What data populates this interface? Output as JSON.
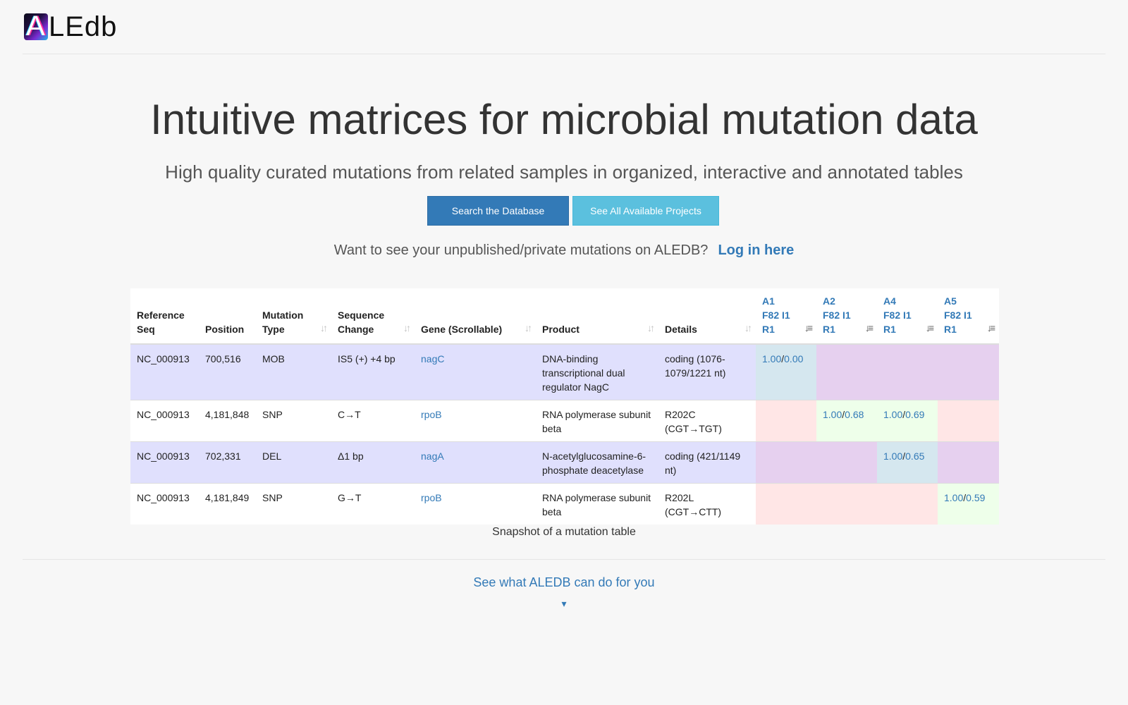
{
  "brand": {
    "logo_letter": "A",
    "logo_text": "LEdb"
  },
  "hero": {
    "title": "Intuitive matrices for microbial mutation data",
    "subtitle": "High quality curated mutations from related samples in organized, interactive and annotated tables"
  },
  "buttons": {
    "search": "Search the Database",
    "projects": "See All Available Projects"
  },
  "login": {
    "prompt": "Want to see your unpublished/private mutations on ALEDB?",
    "link": "Log in here"
  },
  "table": {
    "headers": {
      "ref_seq": [
        "Reference",
        "Seq"
      ],
      "position": "Position",
      "mutation_type": [
        "Mutation",
        "Type"
      ],
      "sequence_change": [
        "Sequence",
        "Change"
      ],
      "gene": "Gene (Scrollable)",
      "product": "Product",
      "details": "Details"
    },
    "samples": [
      {
        "l1": "A1",
        "l2": "F82 I1",
        "l3": "R1"
      },
      {
        "l1": "A2",
        "l2": "F82 I1",
        "l3": "R1"
      },
      {
        "l1": "A4",
        "l2": "F82 I1",
        "l3": "R1"
      },
      {
        "l1": "A5",
        "l2": "F82 I1",
        "l3": "R1"
      }
    ],
    "rows": [
      {
        "ref_seq": "NC_000913",
        "position": "700,516",
        "mutation_type": "MOB",
        "sequence_change": "IS5 (+) +4 bp",
        "gene": "nagC",
        "product": "DNA-binding transcriptional dual regulator NagC",
        "details": "coding (1076-1079/1221 nt)",
        "freqs": [
          [
            "1.00",
            "0.00"
          ],
          null,
          null,
          null
        ]
      },
      {
        "ref_seq": "NC_000913",
        "position": "4,181,848",
        "mutation_type": "SNP",
        "sequence_change": "C→T",
        "gene": "rpoB",
        "product": "RNA polymerase subunit beta",
        "details": "R202C (CGT→TGT)",
        "freqs": [
          null,
          [
            "1.00",
            "0.68"
          ],
          [
            "1.00",
            "0.69"
          ],
          null
        ]
      },
      {
        "ref_seq": "NC_000913",
        "position": "702,331",
        "mutation_type": "DEL",
        "sequence_change": "Δ1 bp",
        "gene": "nagA",
        "product": "N-acetylglucosamine-6-phosphate deacetylase",
        "details": "coding (421/1149 nt)",
        "freqs": [
          null,
          null,
          [
            "1.00",
            "0.65"
          ],
          null
        ]
      },
      {
        "ref_seq": "NC_000913",
        "position": "4,181,849",
        "mutation_type": "SNP",
        "sequence_change": "G→T",
        "gene": "rpoB",
        "product": "RNA polymerase subunit beta",
        "details": "R202L (CGT→CTT)",
        "freqs": [
          null,
          null,
          null,
          [
            "1.00",
            "0.59"
          ]
        ]
      }
    ],
    "caption": "Snapshot of a mutation table"
  },
  "footer": {
    "see_what": "See what ALEDB can do for you",
    "arrow_icon": "chevron-down-icon"
  },
  "colors": {
    "primary": "#337ab7",
    "info": "#5bc0de",
    "row_odd": "#e0e0fd",
    "cell_purple": "#e6d0ef",
    "cell_blue": "#d5e7ef",
    "cell_pink": "#ffe6e6",
    "cell_green": "#eeffea"
  }
}
